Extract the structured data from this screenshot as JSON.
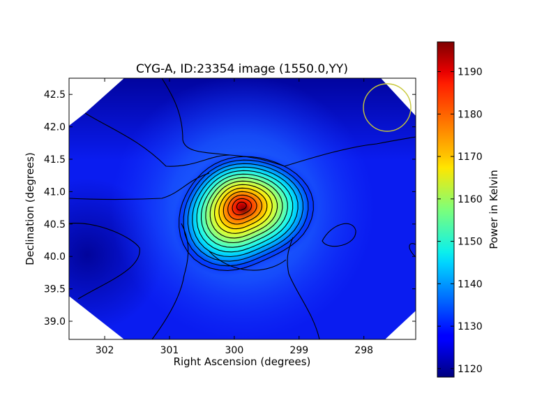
{
  "chart_data": {
    "type": "heatmap",
    "title": "CYG-A, ID:23354 image (1550.0,YY)",
    "xlabel": "Right Ascension (degrees)",
    "ylabel": "Declination (degrees)",
    "xlim": [
      302.55,
      297.2
    ],
    "ylim": [
      38.72,
      42.75
    ],
    "x_axis_inverted": true,
    "x_ticks": [
      302,
      301,
      300,
      299,
      298
    ],
    "y_ticks": [
      39.0,
      39.5,
      40.0,
      40.5,
      41.0,
      41.5,
      42.0,
      42.5
    ],
    "x_tick_labels": [
      "302",
      "301",
      "300",
      "299",
      "298"
    ],
    "y_tick_labels": [
      "39.0",
      "39.5",
      "40.0",
      "40.5",
      "41.0",
      "41.5",
      "42.0",
      "42.5"
    ],
    "colorbar": {
      "label": "Power in Kelvin",
      "colormap": "jet",
      "range": [
        1118,
        1197
      ],
      "ticks": [
        1120,
        1130,
        1140,
        1150,
        1160,
        1170,
        1180,
        1190
      ],
      "tick_labels": [
        "1120",
        "1130",
        "1140",
        "1150",
        "1160",
        "1170",
        "1180",
        "1190"
      ]
    },
    "peak": {
      "ra": 299.85,
      "dec": 40.72,
      "value": 1196
    },
    "background_level": 1126,
    "contours": {
      "color": "#000000",
      "count": 14
    },
    "beam_marker": {
      "ra": 297.6,
      "dec": 42.3,
      "color": "#c8c83a"
    },
    "grid": false
  }
}
